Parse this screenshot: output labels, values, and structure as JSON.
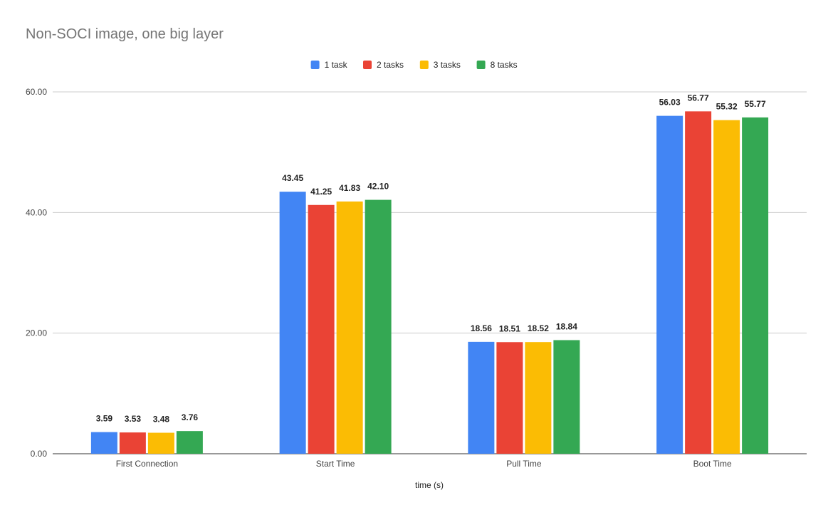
{
  "chart_data": {
    "type": "bar",
    "title": "Non-SOCI image, one big layer",
    "xlabel": "time (s)",
    "ylabel": "",
    "categories": [
      "First Connection",
      "Start Time",
      "Pull Time",
      "Boot Time"
    ],
    "series": [
      {
        "name": "1 task",
        "color": "#4285F4",
        "values": [
          3.59,
          43.45,
          18.56,
          56.03
        ],
        "labels": [
          "3.59",
          "43.45",
          "18.56",
          "56.03"
        ]
      },
      {
        "name": "2 tasks",
        "color": "#EA4335",
        "values": [
          3.53,
          41.25,
          18.51,
          56.77
        ],
        "labels": [
          "3.53",
          "41.25",
          "18.51",
          "56.77"
        ]
      },
      {
        "name": "3 tasks",
        "color": "#FBBC04",
        "values": [
          3.48,
          41.83,
          18.52,
          55.32
        ],
        "labels": [
          "3.48",
          "41.83",
          "18.52",
          "55.32"
        ]
      },
      {
        "name": "8 tasks",
        "color": "#34A853",
        "values": [
          3.76,
          42.1,
          18.84,
          55.77
        ],
        "labels": [
          "3.76",
          "42.10",
          "18.84",
          "55.77"
        ]
      }
    ],
    "ylim": [
      0,
      60
    ],
    "yticks": [
      0,
      20,
      40,
      60
    ],
    "ytick_labels": [
      "0.00",
      "20.00",
      "40.00",
      "60.00"
    ],
    "grid": true,
    "legend_position": "top-center"
  }
}
